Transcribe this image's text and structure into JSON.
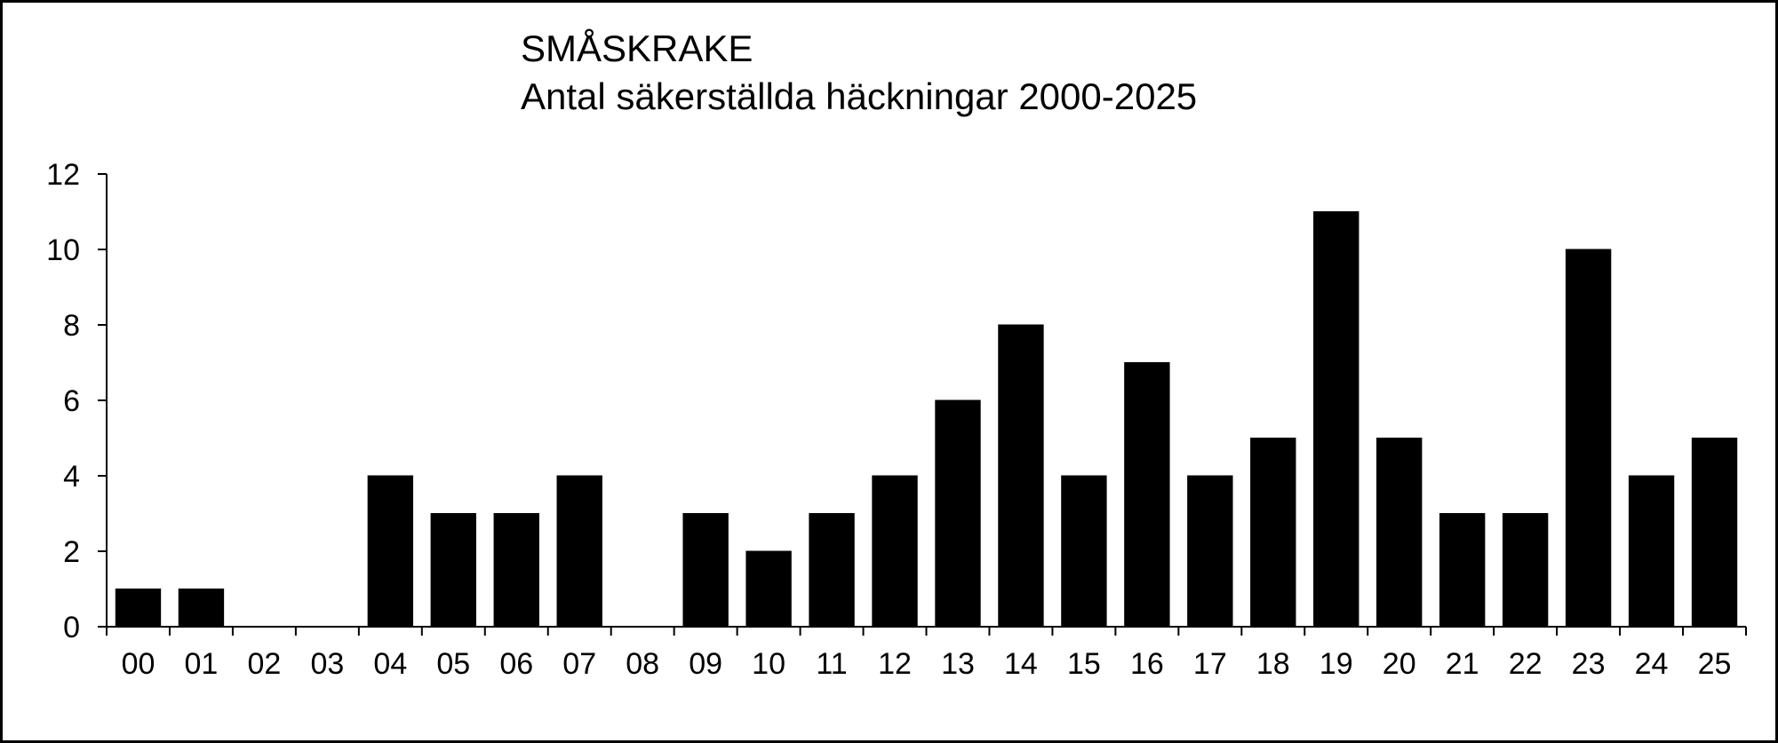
{
  "chart_data": {
    "type": "bar",
    "title": "SMÅSKRAKE",
    "subtitle": "Antal säkerställda häckningar 2000-2025",
    "xlabel": "",
    "ylabel": "",
    "categories": [
      "00",
      "01",
      "02",
      "03",
      "04",
      "05",
      "06",
      "07",
      "08",
      "09",
      "10",
      "11",
      "12",
      "13",
      "14",
      "15",
      "16",
      "17",
      "18",
      "19",
      "20",
      "21",
      "22",
      "23",
      "24",
      "25"
    ],
    "values": [
      1,
      1,
      0,
      0,
      4,
      3,
      3,
      4,
      0,
      3,
      2,
      3,
      4,
      6,
      8,
      4,
      7,
      4,
      5,
      11,
      5,
      3,
      3,
      10,
      4,
      5
    ],
    "ylim": [
      0,
      12
    ],
    "yticks": [
      "0",
      "2",
      "4",
      "6",
      "8",
      "10",
      "12"
    ],
    "grid": false,
    "legend": "none",
    "bar_color": "#000000"
  }
}
